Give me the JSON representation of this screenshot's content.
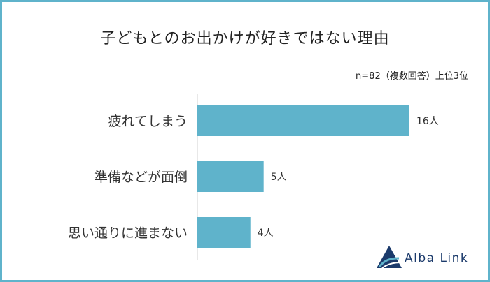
{
  "title": "子どもとのお出かけが好きではない理由",
  "note": "n=82（複数回答）上位3位",
  "logo_text": "Alba Link",
  "colors": {
    "bar": "#5fb3cb",
    "frame": "#5fb3cb",
    "logo": "#1b3a6b"
  },
  "chart_data": {
    "type": "bar",
    "orientation": "horizontal",
    "categories": [
      "疲れてしまう",
      "準備などが面倒",
      "思い通りに進まない"
    ],
    "values": [
      16,
      5,
      4
    ],
    "value_labels": [
      "16人",
      "5人",
      "4人"
    ],
    "unit": "人"
  }
}
